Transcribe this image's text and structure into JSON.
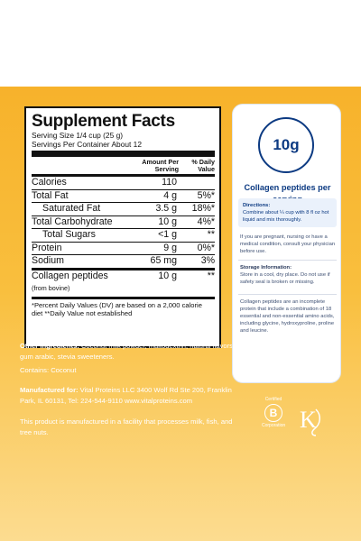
{
  "facts": {
    "title": "Supplement Facts",
    "serving_size": "Serving Size 1/4 cup (25 g)",
    "servings_per_container": "Servings Per Container About 12",
    "header_amount": "Amount Per Serving",
    "header_dv": "% Daily Value",
    "rows": [
      {
        "label": "Calories",
        "amount": "110",
        "dv": ""
      },
      {
        "label": "Total Fat",
        "amount": "4 g",
        "dv": "5%*"
      },
      {
        "label": "Saturated Fat",
        "amount": "3.5 g",
        "dv": "18%*"
      },
      {
        "label": "Total Carbohydrate",
        "amount": "10 g",
        "dv": "4%*"
      },
      {
        "label": "Total Sugars",
        "amount": "<1 g",
        "dv": "**"
      },
      {
        "label": "Protein",
        "amount": "9 g",
        "dv": "0%*"
      },
      {
        "label": "Sodium",
        "amount": "65 mg",
        "dv": "3%"
      },
      {
        "label": "Collagen peptides",
        "sublabel": "(from bovine)",
        "amount": "10 g",
        "dv": "**"
      }
    ],
    "footnote": "*Percent Daily Values (DV) are based on a 2,000 calorie diet **Daily Value not established"
  },
  "info": {
    "other_label": "Other ingredients:",
    "other_text": "Coconut milk powder, maltodextrin, natural flavors, gum arabic, stevia sweeteners.",
    "contains": "Contains: Coconut",
    "manufactured_label": "Manufactured for:",
    "manufactured_text": "Vital Proteins LLC 3400 Wolf Rd Ste 200, Franklin Park, IL 60131, Tel: 224-544-9110 www.vitalproteins.com",
    "facility": "This product is manufactured in a facility that processes milk, fish, and tree nuts."
  },
  "card": {
    "amount": "10g",
    "title": "Collagen peptides per serving",
    "directions_label": "Directions:",
    "directions_text": "Combine about ¼ cup with 8 fl oz hot liquid and mix thoroughly.",
    "pregnant": "If you are pregnant, nursing or have a medical condition, consult your physician before use.",
    "storage_label": "Storage Information:",
    "storage_text": "Store in a cool, dry place. Do not use if safety seal is broken or missing.",
    "collagen_note": "Collagen peptides are an incomplete protein that include a combination of 18 essential and non-essential amino acids, including glycine, hydroxyproline, proline and leucine."
  },
  "logos": {
    "bcorp_top": "Certified",
    "bcorp_letter": "B",
    "bcorp_bottom": "Corporation",
    "kosher": "K"
  },
  "colors": {
    "panel": "#f7b22b",
    "brand_blue": "#0c3a82"
  }
}
